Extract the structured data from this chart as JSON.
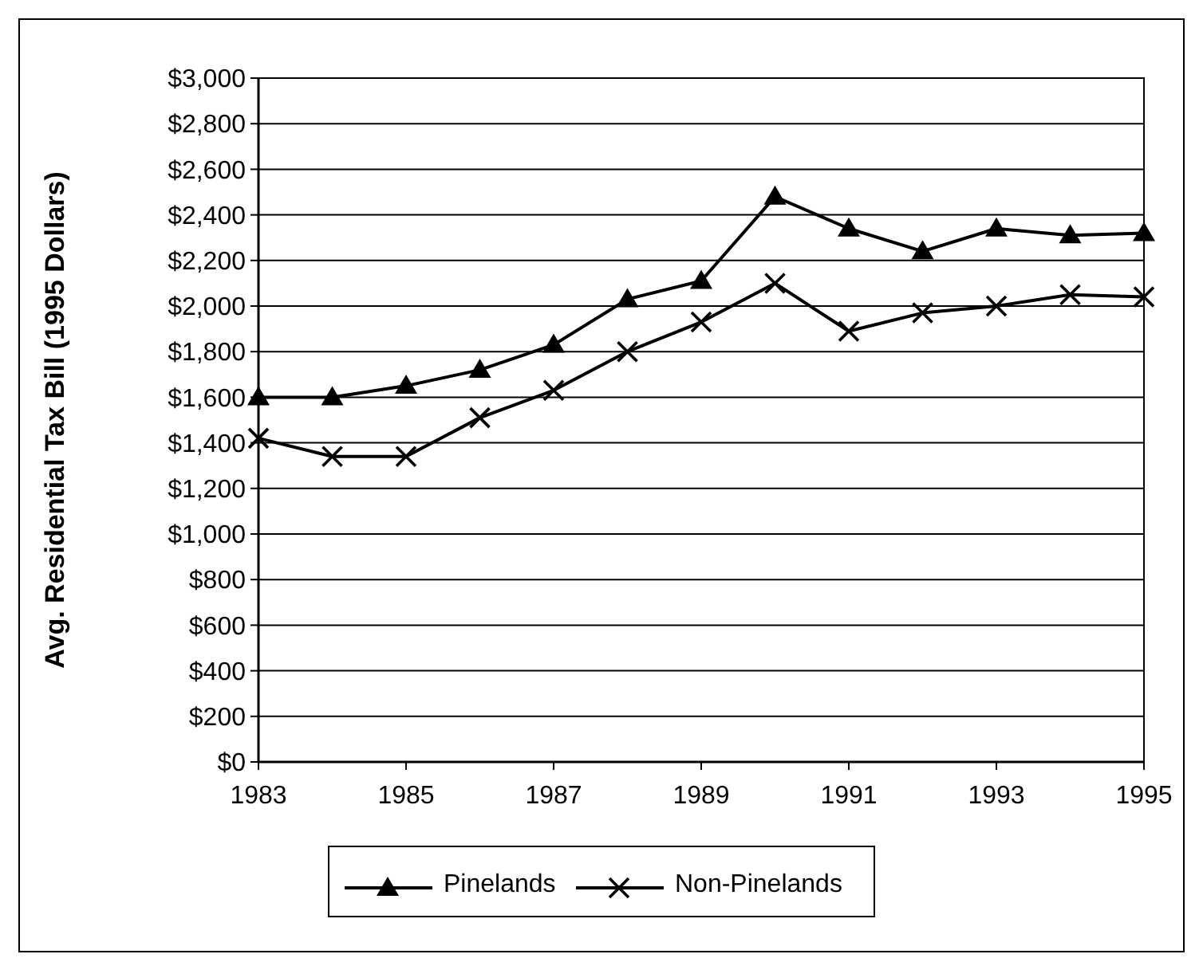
{
  "chart_data": {
    "type": "line",
    "ylabel": "Avg. Residential Tax Bill (1995 Dollars)",
    "x": [
      1983,
      1984,
      1985,
      1986,
      1987,
      1988,
      1989,
      1990,
      1991,
      1992,
      1993,
      1994,
      1995
    ],
    "series": [
      {
        "name": "Pinelands",
        "color": "#000000",
        "marker": "triangle",
        "values": [
          1600,
          1600,
          1650,
          1720,
          1830,
          2030,
          2110,
          2480,
          2340,
          2240,
          2340,
          2310,
          2320
        ]
      },
      {
        "name": "Non-Pinelands",
        "color": "#000000",
        "marker": "cross",
        "values": [
          1420,
          1340,
          1340,
          1510,
          1630,
          1800,
          1930,
          2100,
          1890,
          1970,
          2000,
          2050,
          2040
        ]
      }
    ],
    "xlim": [
      1983,
      1995
    ],
    "xticks": [
      1983,
      1985,
      1987,
      1989,
      1991,
      1993,
      1995
    ],
    "ylim": [
      0,
      3000
    ],
    "yticks": [
      {
        "value": 0,
        "label": "$0"
      },
      {
        "value": 200,
        "label": "$200"
      },
      {
        "value": 400,
        "label": "$400"
      },
      {
        "value": 600,
        "label": "$600"
      },
      {
        "value": 800,
        "label": "$800"
      },
      {
        "value": 1000,
        "label": "$1,000"
      },
      {
        "value": 1200,
        "label": "$1,200"
      },
      {
        "value": 1400,
        "label": "$1,400"
      },
      {
        "value": 1600,
        "label": "$1,600"
      },
      {
        "value": 1800,
        "label": "$1,800"
      },
      {
        "value": 2000,
        "label": "$2,000"
      },
      {
        "value": 2200,
        "label": "$2,200"
      },
      {
        "value": 2400,
        "label": "$2,400"
      },
      {
        "value": 2600,
        "label": "$2,600"
      },
      {
        "value": 2800,
        "label": "$2,800"
      },
      {
        "value": 3000,
        "label": "$3,000"
      }
    ],
    "grid": "y",
    "legend": "bottom",
    "line_style": "solid"
  }
}
